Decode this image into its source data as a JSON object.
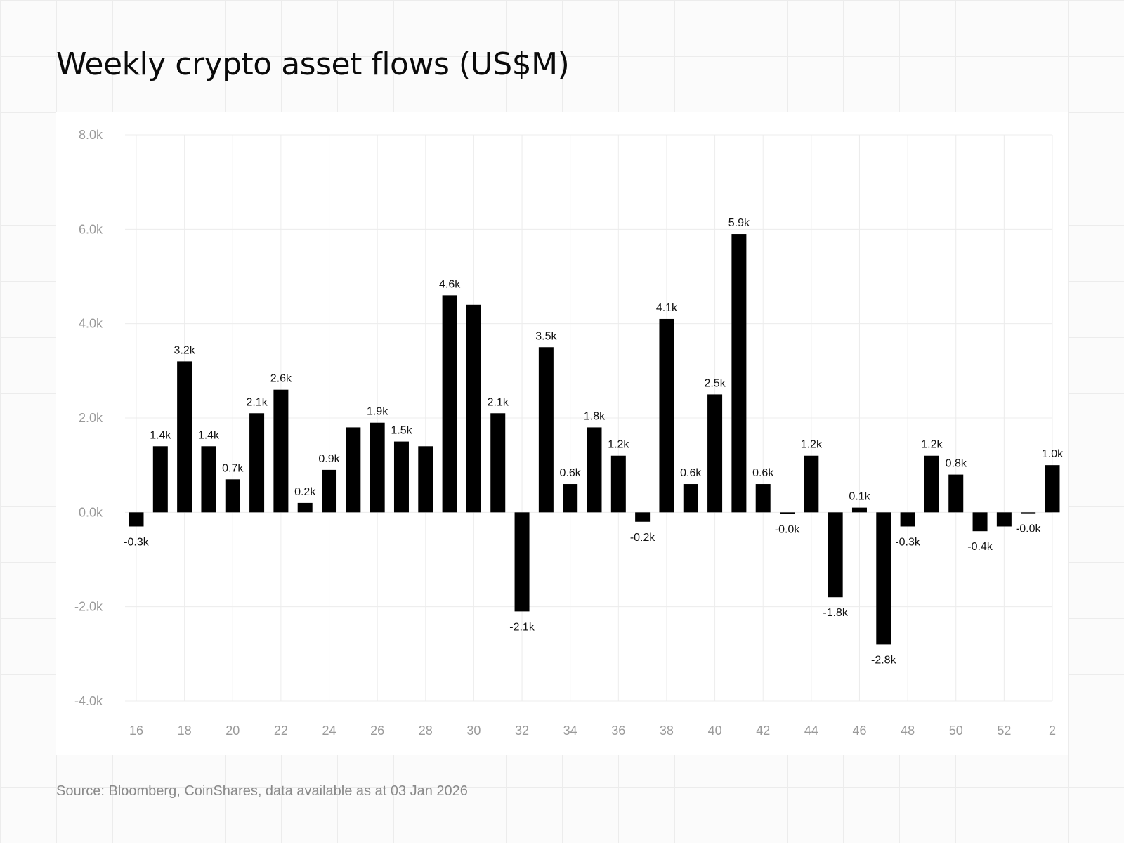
{
  "title": "Weekly crypto asset flows (US$M)",
  "source": "Source: Bloomberg, CoinShares, data available as at 03 Jan 2026",
  "colors": {
    "bar": "#000000",
    "grid": "#ececec",
    "tick_text": "#9a9a9a",
    "label_text": "#111111"
  },
  "chart_data": {
    "type": "bar",
    "title": "Weekly crypto asset flows (US$M)",
    "xlabel": "",
    "ylabel": "",
    "ylim": [
      -4000,
      8000
    ],
    "yticks": [
      8000,
      6000,
      4000,
      2000,
      0,
      -2000,
      -4000
    ],
    "ytick_labels": [
      "8.0k",
      "6.0k",
      "4.0k",
      "2.0k",
      "0.0k",
      "-2.0k",
      "-4.0k"
    ],
    "xtick_labels": [
      "16",
      "18",
      "20",
      "22",
      "24",
      "26",
      "28",
      "30",
      "32",
      "34",
      "36",
      "38",
      "40",
      "42",
      "44",
      "46",
      "48",
      "50",
      "52",
      "2"
    ],
    "grid": true,
    "categories": [
      "16",
      "17",
      "18",
      "19",
      "20",
      "21",
      "22",
      "23",
      "24",
      "25",
      "26",
      "27",
      "28",
      "29",
      "30",
      "31",
      "32",
      "33",
      "34",
      "35",
      "36",
      "37",
      "38",
      "39",
      "40",
      "41",
      "42",
      "43",
      "44",
      "45",
      "46",
      "47",
      "48",
      "49",
      "50",
      "51",
      "52",
      "1",
      "2"
    ],
    "values": [
      -300,
      1400,
      3200,
      1400,
      700,
      2100,
      2600,
      200,
      900,
      1800,
      1900,
      1500,
      1400,
      4600,
      4400,
      2100,
      -2100,
      3500,
      600,
      1800,
      1200,
      -200,
      4100,
      600,
      2500,
      5900,
      600,
      -30,
      1200,
      -1800,
      100,
      -2800,
      -300,
      1200,
      800,
      -400,
      -300,
      -20,
      1000
    ],
    "value_labels": [
      "-0.3k",
      "1.4k",
      "3.2k",
      "1.4k",
      "0.7k",
      "2.1k",
      "2.6k",
      "0.2k",
      "0.9k",
      "",
      "1.9k",
      "1.5k",
      "",
      "4.6k",
      "",
      "2.1k",
      "-2.1k",
      "3.5k",
      "0.6k",
      "1.8k",
      "1.2k",
      "-0.2k",
      "4.1k",
      "0.6k",
      "2.5k",
      "5.9k",
      "0.6k",
      "-0.0k",
      "1.2k",
      "-1.8k",
      "0.1k",
      "-2.8k",
      "-0.3k",
      "1.2k",
      "0.8k",
      "-0.4k",
      "",
      "-0.0k",
      "1.0k"
    ]
  }
}
